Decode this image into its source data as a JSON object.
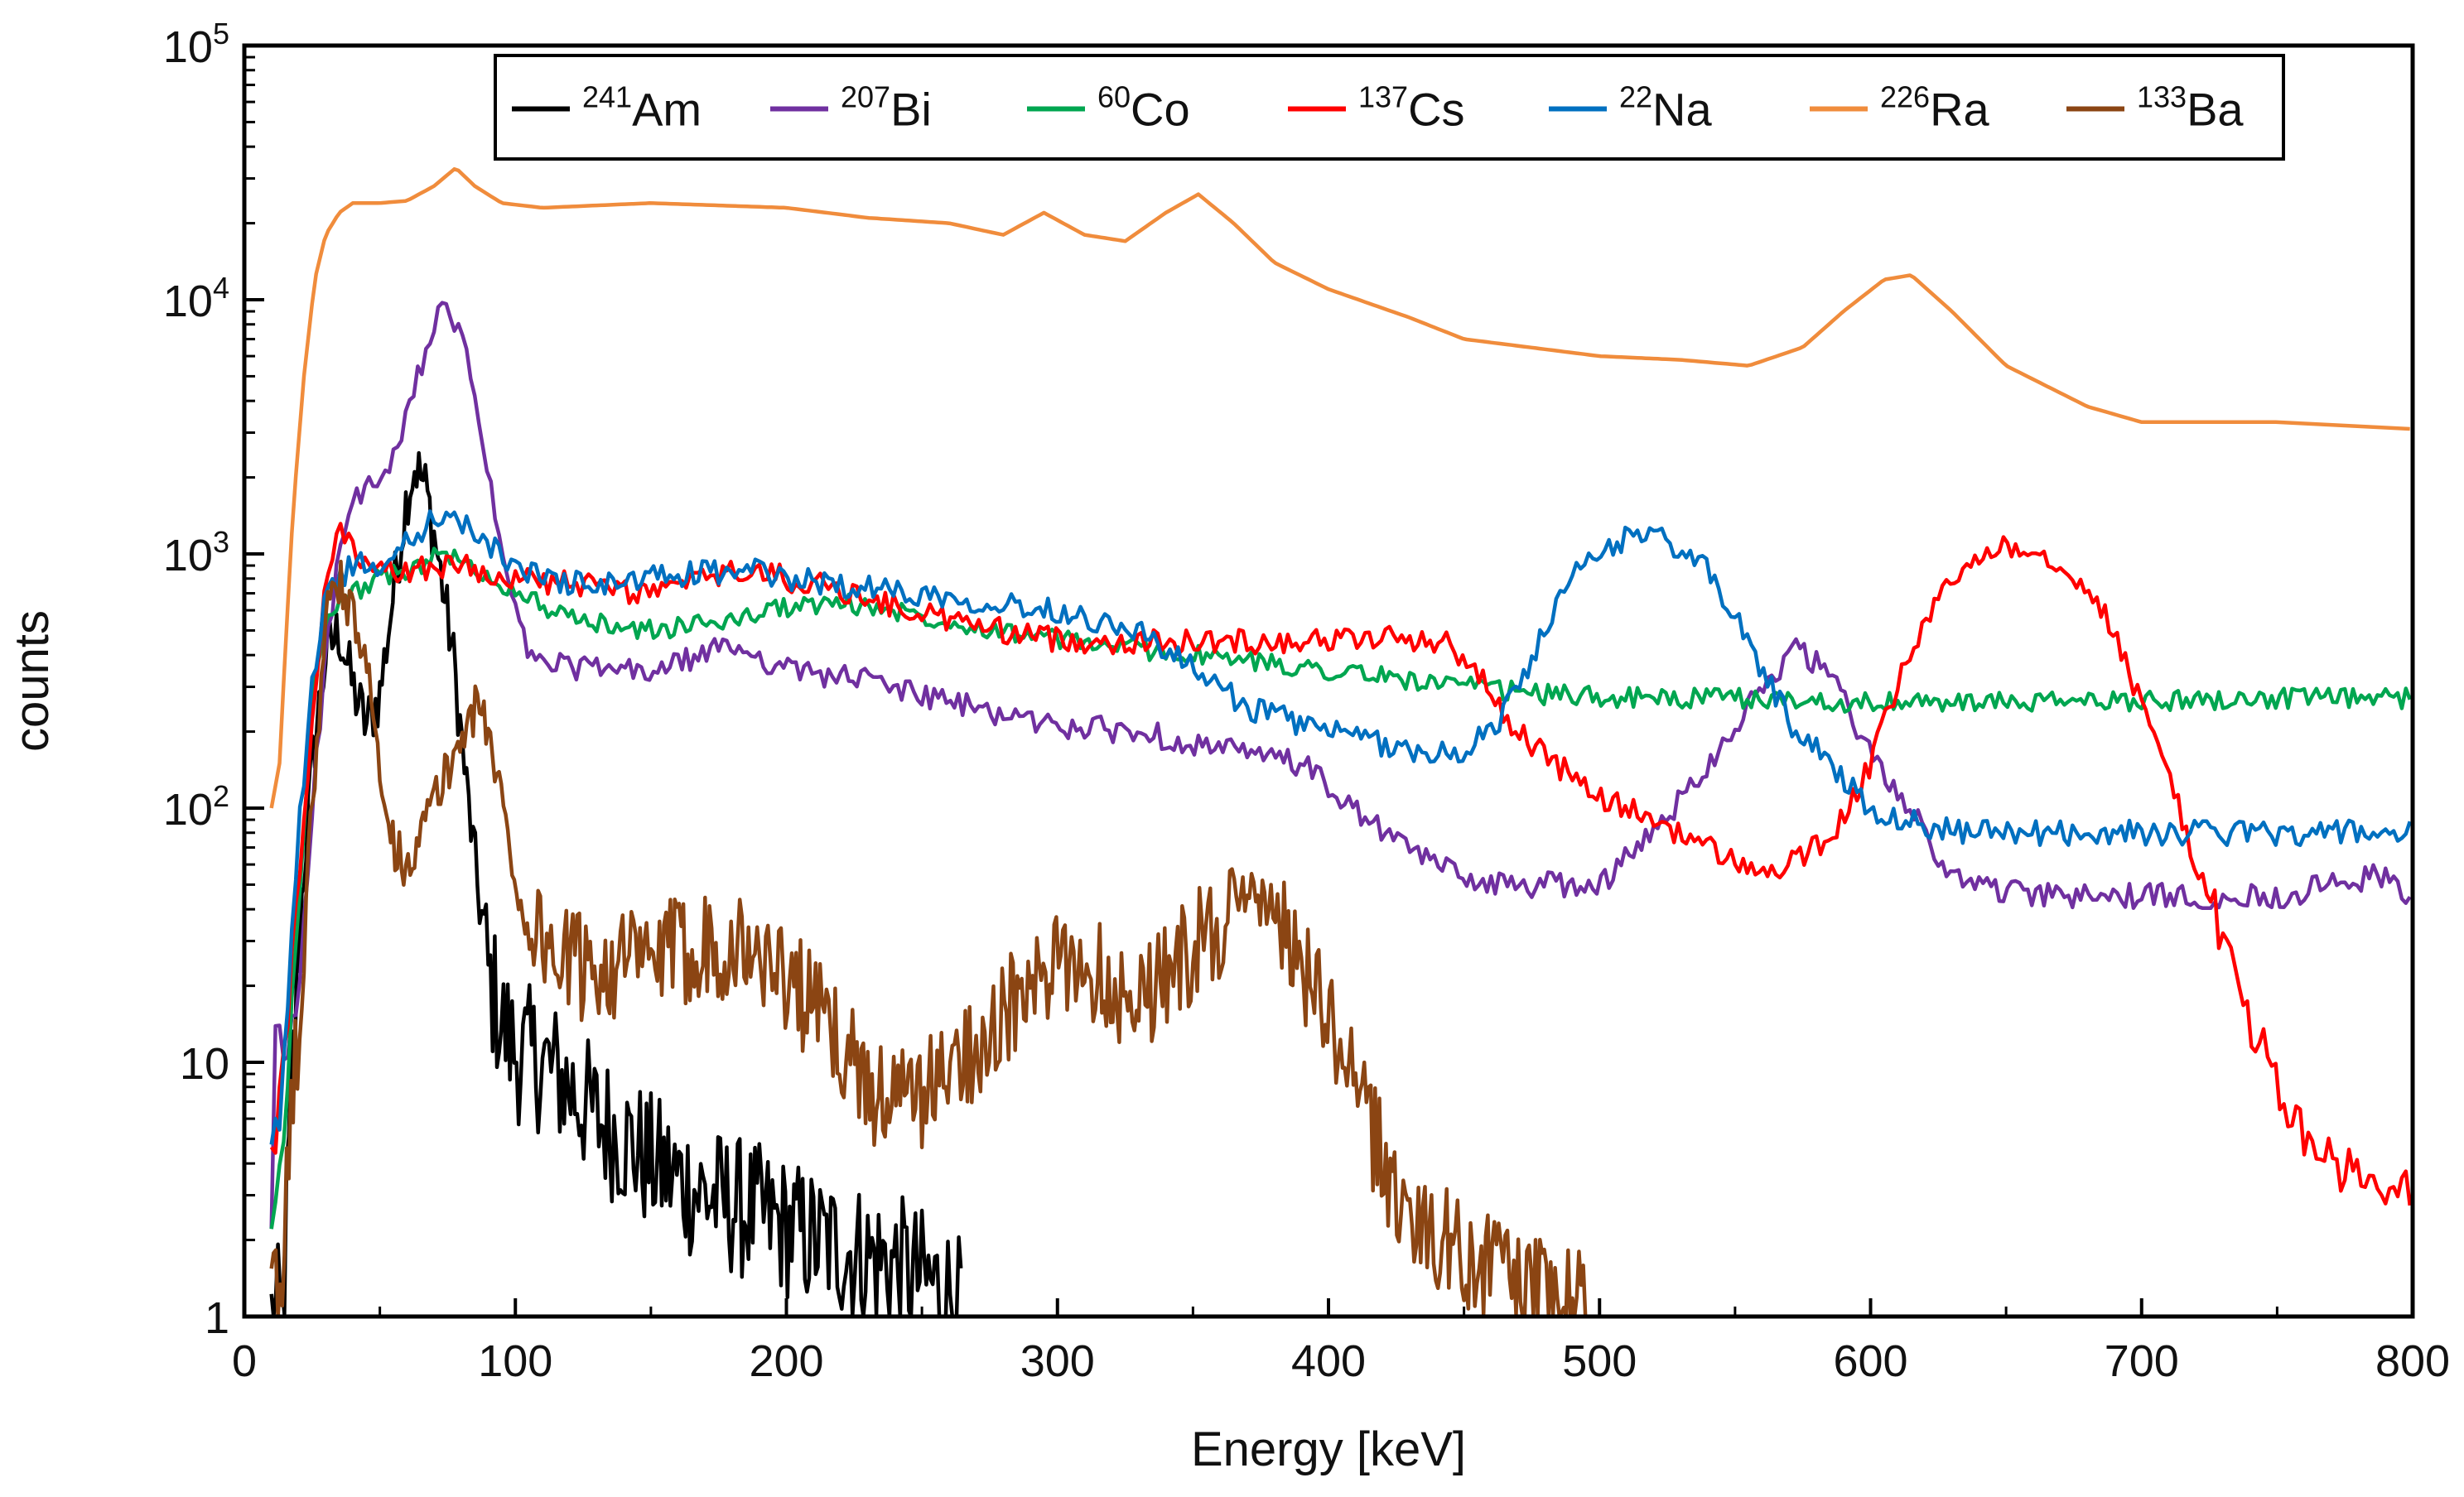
{
  "chart_data": {
    "type": "line",
    "title": "",
    "xlabel": "Energy [keV]",
    "ylabel": "counts",
    "xlim": [
      0,
      800
    ],
    "ylim": [
      1,
      100000
    ],
    "yscale": "log",
    "grid": false,
    "legend_position": "top-right",
    "x_ticks": [
      "0",
      "100",
      "200",
      "300",
      "400",
      "500",
      "600",
      "700",
      "800"
    ],
    "y_ticks": [
      {
        "value": 1,
        "base": "1",
        "exp": ""
      },
      {
        "value": 10,
        "base": "10",
        "exp": ""
      },
      {
        "value": 100,
        "base": "10",
        "exp": "2"
      },
      {
        "value": 1000,
        "base": "10",
        "exp": "3"
      },
      {
        "value": 10000,
        "base": "10",
        "exp": "4"
      },
      {
        "value": 100000,
        "base": "10",
        "exp": "5"
      }
    ],
    "series": [
      {
        "mass": "241",
        "element": "Am",
        "color": "#000000",
        "noise": 0.13,
        "points": [
          [
            10,
            1
          ],
          [
            14,
            1
          ],
          [
            20,
            30
          ],
          [
            25,
            150
          ],
          [
            30,
            400
          ],
          [
            35,
            500
          ],
          [
            40,
            300
          ],
          [
            45,
            210
          ],
          [
            50,
            280
          ],
          [
            55,
            700
          ],
          [
            60,
            1700
          ],
          [
            63,
            2250
          ],
          [
            67,
            1800
          ],
          [
            72,
            900
          ],
          [
            77,
            400
          ],
          [
            82,
            120
          ],
          [
            86,
            50
          ],
          [
            90,
            22
          ],
          [
            95,
            14
          ],
          [
            100,
            11
          ],
          [
            110,
            10
          ],
          [
            120,
            8
          ],
          [
            130,
            6
          ],
          [
            140,
            5
          ],
          [
            150,
            4
          ],
          [
            170,
            3
          ],
          [
            190,
            2.5
          ],
          [
            210,
            2
          ],
          [
            240,
            1.6
          ],
          [
            262,
            1.2
          ],
          [
            265,
            1
          ]
        ]
      },
      {
        "mass": "207",
        "element": "Bi",
        "color": "#7030a0",
        "noise": 0.05,
        "points": [
          [
            10,
            2
          ],
          [
            12,
            20
          ],
          [
            15,
            9
          ],
          [
            20,
            20
          ],
          [
            25,
            100
          ],
          [
            30,
            400
          ],
          [
            35,
            1000
          ],
          [
            40,
            1600
          ],
          [
            45,
            1800
          ],
          [
            50,
            1900
          ],
          [
            55,
            2300
          ],
          [
            60,
            3400
          ],
          [
            65,
            5500
          ],
          [
            70,
            8000
          ],
          [
            74,
            9000
          ],
          [
            78,
            8000
          ],
          [
            82,
            6000
          ],
          [
            86,
            3800
          ],
          [
            90,
            2000
          ],
          [
            95,
            1000
          ],
          [
            100,
            600
          ],
          [
            105,
            400
          ],
          [
            110,
            370
          ],
          [
            120,
            360
          ],
          [
            150,
            340
          ],
          [
            180,
            440
          ],
          [
            200,
            350
          ],
          [
            230,
            320
          ],
          [
            260,
            260
          ],
          [
            300,
            210
          ],
          [
            330,
            200
          ],
          [
            360,
            170
          ],
          [
            390,
            150
          ],
          [
            400,
            120
          ],
          [
            420,
            80
          ],
          [
            440,
            60
          ],
          [
            460,
            50
          ],
          [
            500,
            50
          ],
          [
            520,
            80
          ],
          [
            540,
            150
          ],
          [
            560,
            300
          ],
          [
            572,
            420
          ],
          [
            585,
            340
          ],
          [
            600,
            160
          ],
          [
            615,
            100
          ],
          [
            625,
            60
          ],
          [
            640,
            50
          ],
          [
            660,
            45
          ],
          [
            700,
            45
          ],
          [
            750,
            45
          ],
          [
            770,
            50
          ],
          [
            790,
            55
          ],
          [
            800,
            40
          ]
        ]
      },
      {
        "mass": "60",
        "element": "Co",
        "color": "#00a650",
        "noise": 0.04,
        "points": [
          [
            10,
            2
          ],
          [
            15,
            6
          ],
          [
            20,
            40
          ],
          [
            25,
            250
          ],
          [
            30,
            600
          ],
          [
            35,
            650
          ],
          [
            40,
            700
          ],
          [
            45,
            750
          ],
          [
            50,
            800
          ],
          [
            60,
            850
          ],
          [
            70,
            980
          ],
          [
            75,
            1000
          ],
          [
            80,
            920
          ],
          [
            90,
            800
          ],
          [
            100,
            720
          ],
          [
            120,
            550
          ],
          [
            150,
            500
          ],
          [
            180,
            550
          ],
          [
            200,
            620
          ],
          [
            220,
            640
          ],
          [
            240,
            600
          ],
          [
            270,
            520
          ],
          [
            300,
            460
          ],
          [
            350,
            400
          ],
          [
            400,
            350
          ],
          [
            450,
            300
          ],
          [
            480,
            280
          ],
          [
            520,
            270
          ],
          [
            550,
            270
          ],
          [
            600,
            260
          ],
          [
            650,
            260
          ],
          [
            700,
            265
          ],
          [
            750,
            270
          ],
          [
            800,
            270
          ]
        ]
      },
      {
        "mass": "137",
        "element": "Cs",
        "color": "#ff0000",
        "noise": 0.05,
        "points": [
          [
            10,
            4
          ],
          [
            15,
            10
          ],
          [
            20,
            50
          ],
          [
            25,
            200
          ],
          [
            30,
            800
          ],
          [
            35,
            1200
          ],
          [
            40,
            1100
          ],
          [
            45,
            850
          ],
          [
            60,
            850
          ],
          [
            70,
            900
          ],
          [
            80,
            900
          ],
          [
            100,
            800
          ],
          [
            130,
            740
          ],
          [
            150,
            700
          ],
          [
            180,
            850
          ],
          [
            190,
            850
          ],
          [
            200,
            800
          ],
          [
            220,
            720
          ],
          [
            250,
            580
          ],
          [
            280,
            500
          ],
          [
            300,
            460
          ],
          [
            330,
            450
          ],
          [
            350,
            450
          ],
          [
            400,
            460
          ],
          [
            430,
            470
          ],
          [
            445,
            440
          ],
          [
            455,
            340
          ],
          [
            465,
            230
          ],
          [
            480,
            160
          ],
          [
            500,
            110
          ],
          [
            520,
            90
          ],
          [
            540,
            70
          ],
          [
            560,
            55
          ],
          [
            570,
            60
          ],
          [
            580,
            70
          ],
          [
            590,
            90
          ],
          [
            600,
            150
          ],
          [
            610,
            300
          ],
          [
            620,
            550
          ],
          [
            635,
            900
          ],
          [
            648,
            1100
          ],
          [
            660,
            1050
          ],
          [
            675,
            850
          ],
          [
            690,
            500
          ],
          [
            700,
            250
          ],
          [
            710,
            140
          ],
          [
            720,
            60
          ],
          [
            730,
            30
          ],
          [
            740,
            15
          ],
          [
            750,
            8
          ],
          [
            760,
            5
          ],
          [
            770,
            4
          ],
          [
            790,
            3
          ],
          [
            800,
            3
          ]
        ]
      },
      {
        "mass": "22",
        "element": "Na",
        "color": "#0070c0",
        "noise": 0.05,
        "points": [
          [
            10,
            4
          ],
          [
            15,
            10
          ],
          [
            20,
            80
          ],
          [
            25,
            300
          ],
          [
            30,
            700
          ],
          [
            35,
            800
          ],
          [
            40,
            900
          ],
          [
            50,
            900
          ],
          [
            60,
            1100
          ],
          [
            70,
            1380
          ],
          [
            75,
            1450
          ],
          [
            80,
            1300
          ],
          [
            90,
            1100
          ],
          [
            100,
            900
          ],
          [
            110,
            800
          ],
          [
            130,
            750
          ],
          [
            150,
            800
          ],
          [
            170,
            850
          ],
          [
            190,
            850
          ],
          [
            200,
            800
          ],
          [
            250,
            700
          ],
          [
            300,
            600
          ],
          [
            330,
            500
          ],
          [
            350,
            350
          ],
          [
            370,
            250
          ],
          [
            400,
            200
          ],
          [
            430,
            170
          ],
          [
            445,
            160
          ],
          [
            460,
            200
          ],
          [
            470,
            300
          ],
          [
            480,
            500
          ],
          [
            490,
            800
          ],
          [
            500,
            1000
          ],
          [
            512,
            1200
          ],
          [
            525,
            1150
          ],
          [
            540,
            850
          ],
          [
            555,
            450
          ],
          [
            570,
            220
          ],
          [
            585,
            150
          ],
          [
            600,
            100
          ],
          [
            620,
            85
          ],
          [
            640,
            80
          ],
          [
            680,
            80
          ],
          [
            720,
            80
          ],
          [
            760,
            80
          ],
          [
            800,
            80
          ]
        ]
      },
      {
        "mass": "226",
        "element": "Ra",
        "color": "#f08c3c",
        "noise": 0.0,
        "points": [
          [
            10,
            100
          ],
          [
            13,
            150
          ],
          [
            15,
            400
          ],
          [
            18,
            1500
          ],
          [
            22,
            5000
          ],
          [
            26,
            12000
          ],
          [
            30,
            18000
          ],
          [
            35,
            22000
          ],
          [
            40,
            24000
          ],
          [
            50,
            24000
          ],
          [
            60,
            24500
          ],
          [
            70,
            28000
          ],
          [
            78,
            33000
          ],
          [
            85,
            28000
          ],
          [
            95,
            24000
          ],
          [
            110,
            23000
          ],
          [
            150,
            24000
          ],
          [
            200,
            23000
          ],
          [
            230,
            21000
          ],
          [
            260,
            20000
          ],
          [
            280,
            18000
          ],
          [
            295,
            22000
          ],
          [
            310,
            18000
          ],
          [
            325,
            17000
          ],
          [
            340,
            22000
          ],
          [
            352,
            26000
          ],
          [
            365,
            20000
          ],
          [
            380,
            14000
          ],
          [
            400,
            11000
          ],
          [
            430,
            8500
          ],
          [
            450,
            7000
          ],
          [
            500,
            6000
          ],
          [
            530,
            5800
          ],
          [
            555,
            5500
          ],
          [
            575,
            6500
          ],
          [
            590,
            9000
          ],
          [
            605,
            12000
          ],
          [
            615,
            12500
          ],
          [
            630,
            9000
          ],
          [
            650,
            5500
          ],
          [
            680,
            3800
          ],
          [
            700,
            3300
          ],
          [
            750,
            3300
          ],
          [
            800,
            3100
          ]
        ]
      },
      {
        "mass": "133",
        "element": "Ba",
        "color": "#8b4513",
        "noise": 0.1,
        "points": [
          [
            10,
            1
          ],
          [
            14,
            1.5
          ],
          [
            20,
            15
          ],
          [
            25,
            100
          ],
          [
            30,
            500
          ],
          [
            33,
            800
          ],
          [
            36,
            750
          ],
          [
            40,
            550
          ],
          [
            45,
            350
          ],
          [
            50,
            160
          ],
          [
            55,
            70
          ],
          [
            60,
            60
          ],
          [
            65,
            80
          ],
          [
            75,
            140
          ],
          [
            82,
            220
          ],
          [
            86,
            250
          ],
          [
            90,
            200
          ],
          [
            95,
            110
          ],
          [
            100,
            50
          ],
          [
            105,
            35
          ],
          [
            120,
            24
          ],
          [
            150,
            25
          ],
          [
            170,
            30
          ],
          [
            185,
            28
          ],
          [
            200,
            22
          ],
          [
            220,
            12
          ],
          [
            230,
            8
          ],
          [
            245,
            7
          ],
          [
            260,
            9
          ],
          [
            270,
            12
          ],
          [
            285,
            17
          ],
          [
            300,
            23
          ],
          [
            310,
            25
          ],
          [
            320,
            20
          ],
          [
            330,
            18
          ],
          [
            345,
            25
          ],
          [
            360,
            35
          ],
          [
            370,
            45
          ],
          [
            380,
            40
          ],
          [
            390,
            25
          ],
          [
            400,
            14
          ],
          [
            410,
            8
          ],
          [
            420,
            4
          ],
          [
            430,
            2.5
          ],
          [
            440,
            2
          ],
          [
            450,
            1.8
          ],
          [
            465,
            1.5
          ],
          [
            480,
            1.2
          ],
          [
            495,
            1.1
          ]
        ]
      }
    ]
  }
}
